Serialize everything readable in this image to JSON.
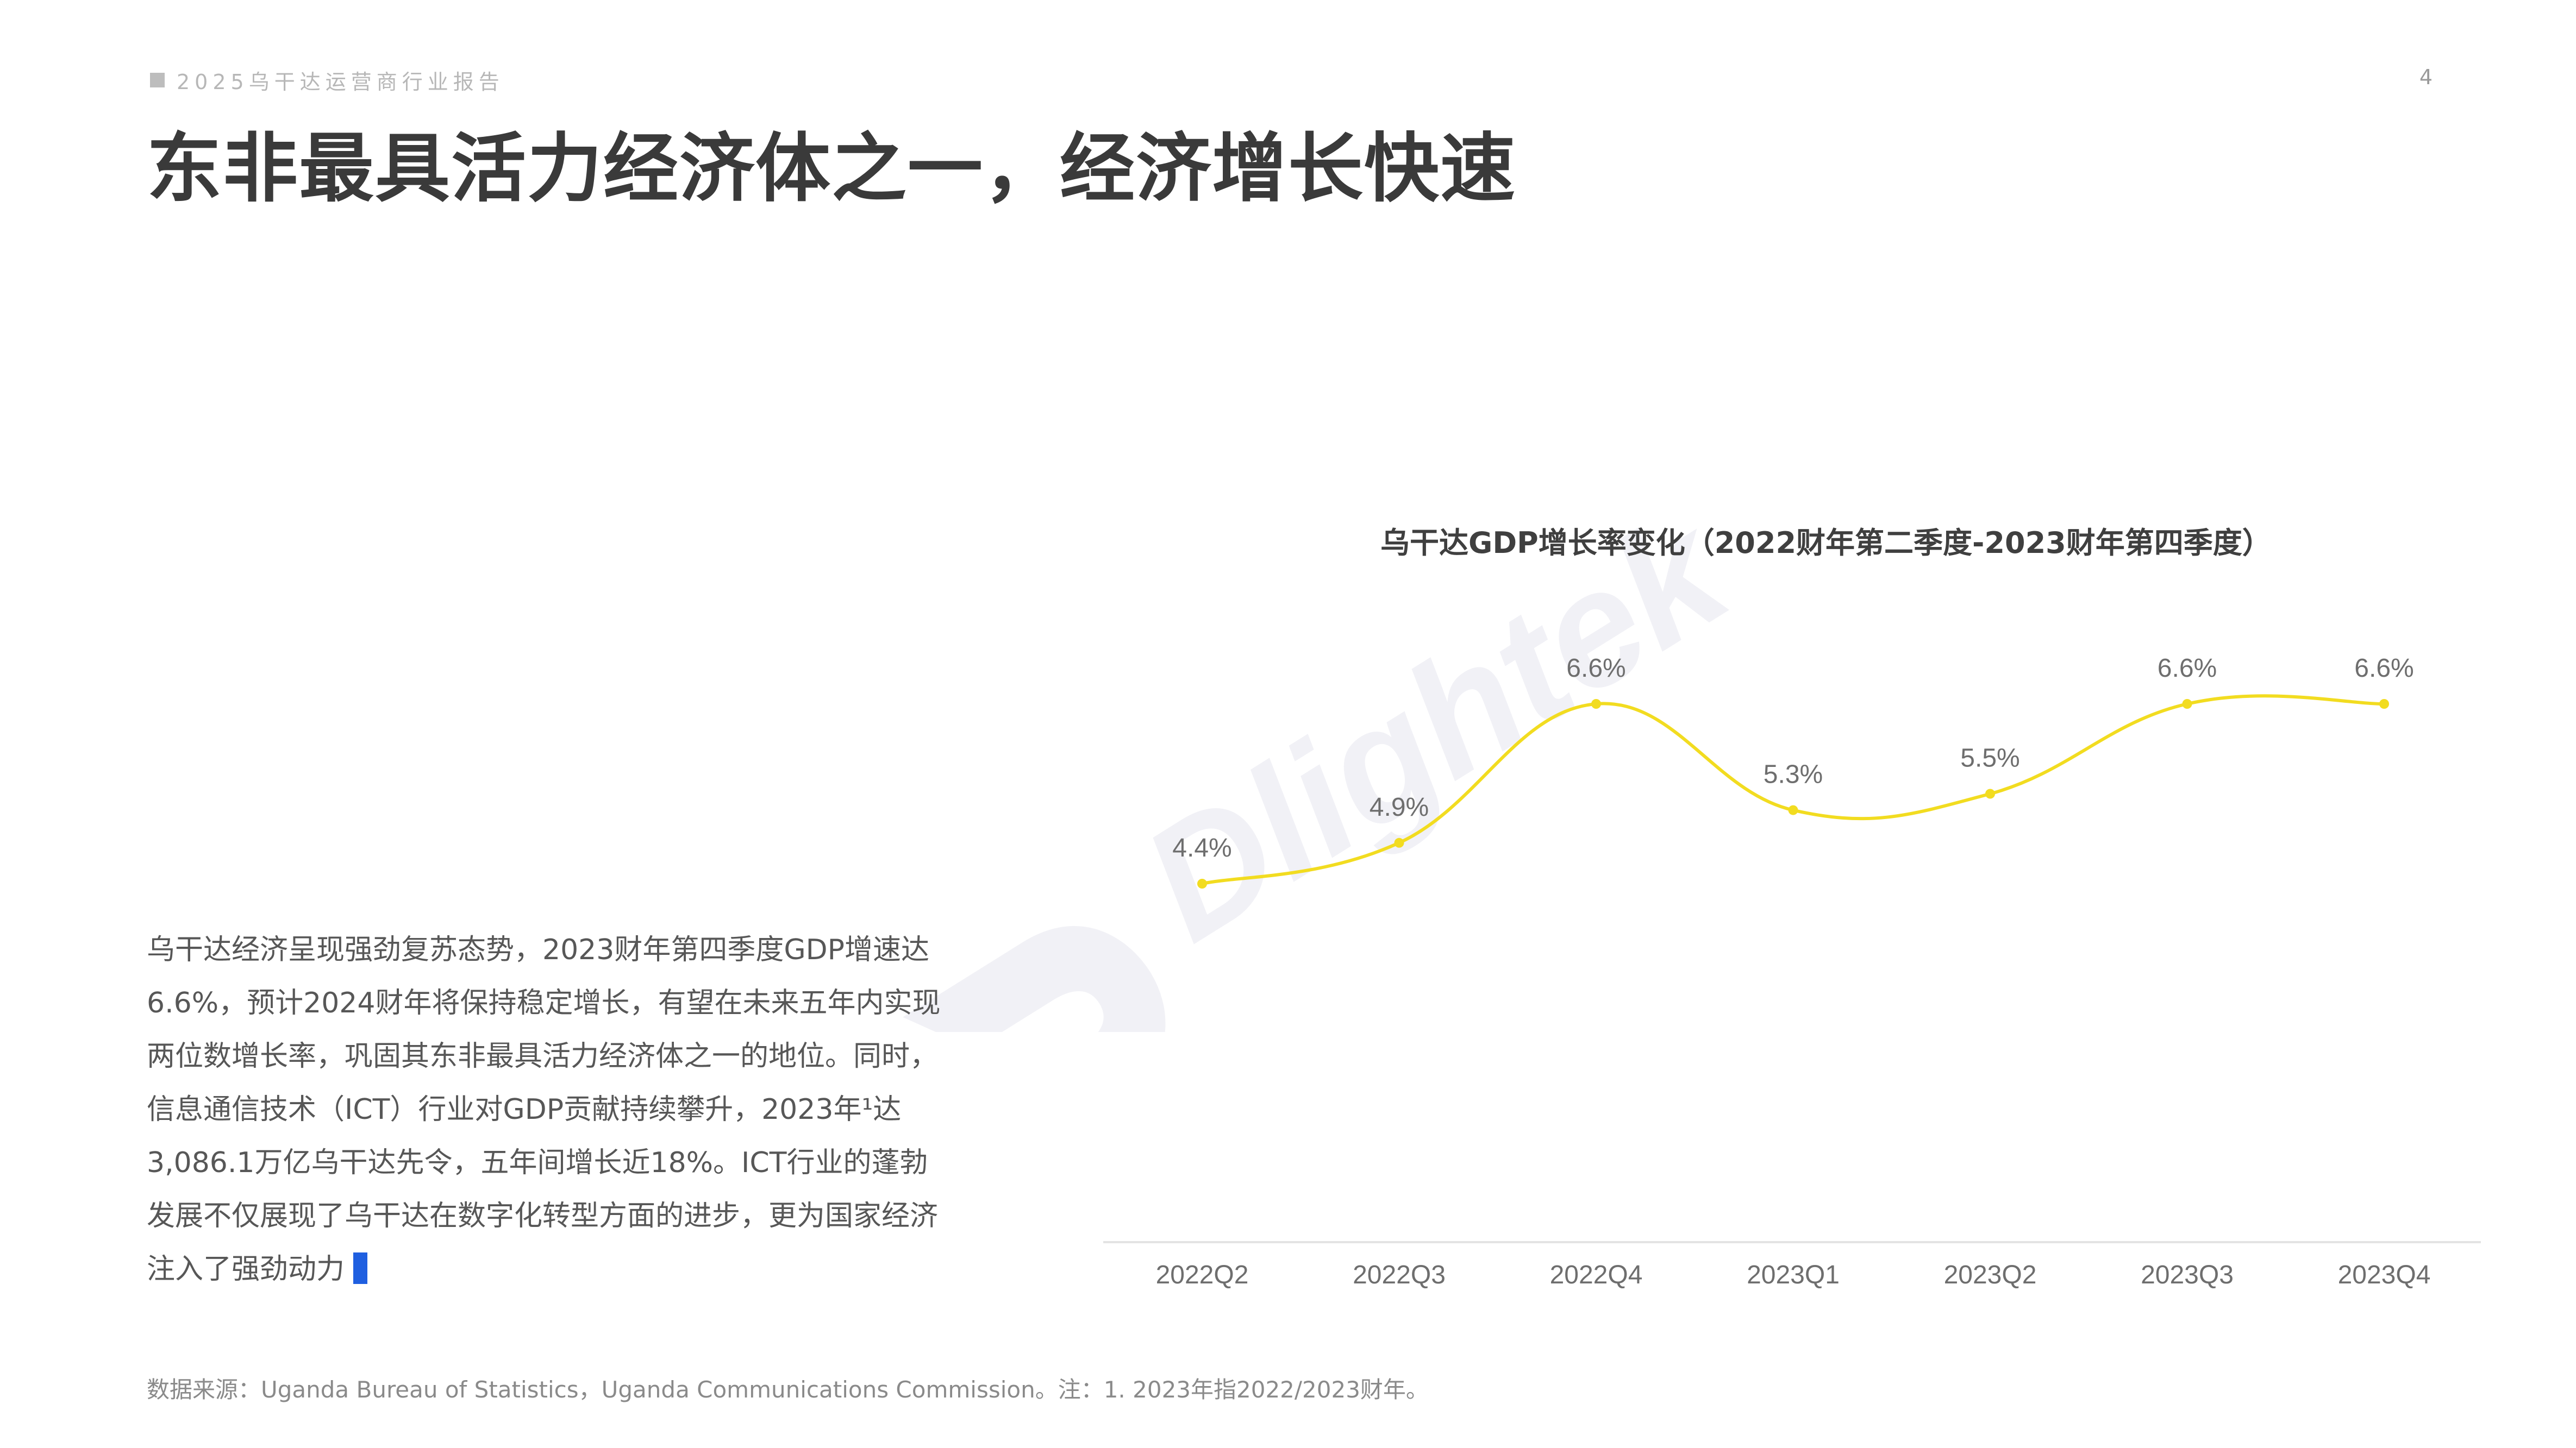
{
  "header": {
    "report_tag": "2025乌干达运营商行业报告",
    "page_number": "4"
  },
  "page_title": "东非最具活力经济体之一，经济增长快速",
  "watermark": {
    "text": "Dlightek",
    "color": "#f1f1f6"
  },
  "chart_data": {
    "type": "line",
    "title": "乌干达GDP增长率变化（2022财年第二季度-2023财年第四季度）",
    "categories": [
      "2022Q2",
      "2022Q3",
      "2022Q4",
      "2023Q1",
      "2023Q2",
      "2023Q3",
      "2023Q4"
    ],
    "series": [
      {
        "values": [
          4.4,
          4.9,
          6.6,
          5.3,
          5.5,
          6.6,
          6.6
        ],
        "labels": [
          "4.4%",
          "4.9%",
          "6.6%",
          "5.3%",
          "5.5%",
          "6.6%",
          "6.6%"
        ],
        "color": "#f2dc20"
      }
    ],
    "xlabel": "",
    "ylabel": "",
    "smooth": true,
    "grid": false,
    "legend": "none"
  },
  "body_text": "乌干达经济呈现强劲复苏态势，2023财年第四季度GDP增速达6.6%，预计2024财年将保持稳定增长，有望在未来五年内实现两位数增长率，巩固其东非最具活力经济体之一的地位。同时，信息通信技术（ICT）行业对GDP贡献持续攀升，2023年¹达3,086.1万亿乌干达先令，五年间增长近18%。ICT行业的蓬勃发展不仅展现了乌干达在数字化转型方面的进步，更为国家经济注入了强劲动力",
  "footnote": "数据来源：Uganda Bureau of Statistics，Uganda Communications Commission。注：1. 2023年指2022/2023财年。",
  "colors": {
    "accent_cursor": "#1f5fe0",
    "axis_line": "#e3e3e3"
  }
}
